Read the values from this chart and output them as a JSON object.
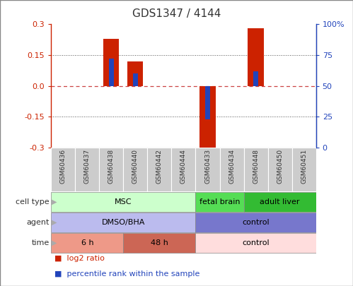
{
  "title": "GDS1347 / 4144",
  "samples": [
    "GSM60436",
    "GSM60437",
    "GSM60438",
    "GSM60440",
    "GSM60442",
    "GSM60444",
    "GSM60433",
    "GSM60434",
    "GSM60448",
    "GSM60450",
    "GSM60451"
  ],
  "log2_ratio": [
    0.0,
    0.0,
    0.23,
    0.12,
    0.0,
    0.0,
    -0.31,
    0.0,
    0.28,
    0.0,
    0.0
  ],
  "pct_rank_pct": [
    0.0,
    0.0,
    72.0,
    60.0,
    0.0,
    0.0,
    23.0,
    0.0,
    62.0,
    0.0,
    0.0
  ],
  "ylim": [
    -0.3,
    0.3
  ],
  "yticks_left": [
    -0.3,
    -0.15,
    0.0,
    0.15,
    0.3
  ],
  "yticks_right": [
    0,
    25,
    50,
    75,
    100
  ],
  "bar_width": 0.65,
  "bar_color_red": "#cc2200",
  "bar_color_blue": "#2244bb",
  "pct_bar_width": 0.22,
  "zero_line_color": "#cc4444",
  "dotted_line_color": "#555555",
  "left_axis_color": "#cc2200",
  "right_axis_color": "#2244bb",
  "bg_color": "#ffffff",
  "tick_label_area_color": "#cccccc",
  "cell_type_row": {
    "groups": [
      {
        "label": "MSC",
        "start": 0,
        "end": 6,
        "color": "#ccffcc",
        "text_color": "#000000"
      },
      {
        "label": "fetal brain",
        "start": 6,
        "end": 8,
        "color": "#55dd55",
        "text_color": "#000000"
      },
      {
        "label": "adult liver",
        "start": 8,
        "end": 11,
        "color": "#33bb33",
        "text_color": "#000000"
      }
    ]
  },
  "agent_row": {
    "groups": [
      {
        "label": "DMSO/BHA",
        "start": 0,
        "end": 6,
        "color": "#bbbbee",
        "text_color": "#000000"
      },
      {
        "label": "control",
        "start": 6,
        "end": 11,
        "color": "#7777cc",
        "text_color": "#000000"
      }
    ]
  },
  "time_row": {
    "groups": [
      {
        "label": "6 h",
        "start": 0,
        "end": 3,
        "color": "#ee9988",
        "text_color": "#000000"
      },
      {
        "label": "48 h",
        "start": 3,
        "end": 6,
        "color": "#cc6655",
        "text_color": "#000000"
      },
      {
        "label": "control",
        "start": 6,
        "end": 11,
        "color": "#ffdddd",
        "text_color": "#000000"
      }
    ]
  },
  "legend_red": "log2 ratio",
  "legend_blue": "percentile rank within the sample"
}
